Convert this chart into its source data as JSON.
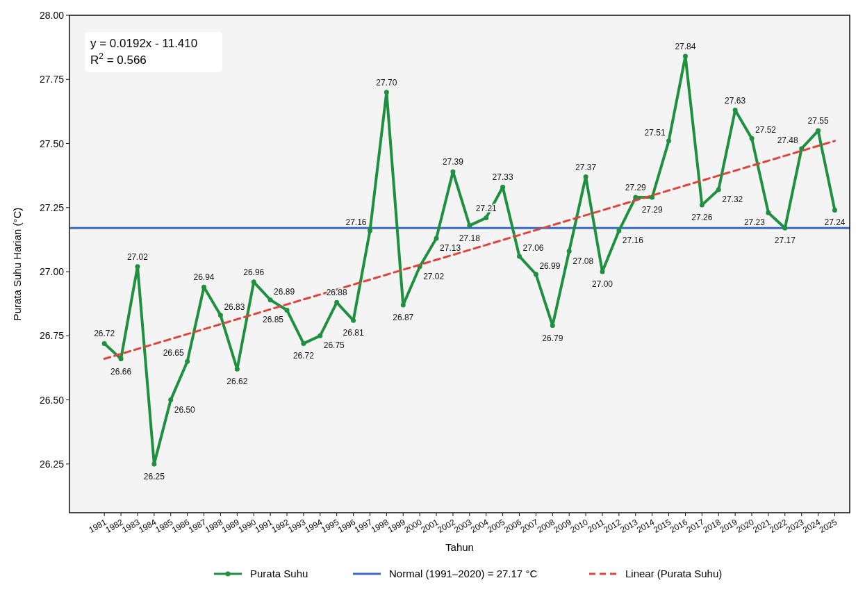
{
  "chart_data": {
    "type": "line",
    "xlabel": "Tahun",
    "ylabel": "Purata Suhu Harian (°C)",
    "x": [
      1981,
      1982,
      1983,
      1984,
      1985,
      1986,
      1987,
      1988,
      1989,
      1990,
      1991,
      1992,
      1993,
      1994,
      1995,
      1996,
      1997,
      1998,
      1999,
      2000,
      2001,
      2002,
      2003,
      2004,
      2005,
      2006,
      2007,
      2008,
      2009,
      2010,
      2011,
      2012,
      2013,
      2014,
      2015,
      2016,
      2017,
      2018,
      2019,
      2020,
      2021,
      2022,
      2023,
      2024,
      2025
    ],
    "xlim": [
      1978.9,
      2025.9
    ],
    "xticks": [
      1981,
      1982,
      1983,
      1984,
      1985,
      1986,
      1987,
      1988,
      1989,
      1990,
      1991,
      1992,
      1993,
      1994,
      1995,
      1996,
      1997,
      1998,
      1999,
      2000,
      2001,
      2002,
      2003,
      2004,
      2005,
      2006,
      2007,
      2008,
      2009,
      2010,
      2011,
      2012,
      2013,
      2014,
      2015,
      2016,
      2017,
      2018,
      2019,
      2020,
      2021,
      2022,
      2023,
      2024,
      2025
    ],
    "series": [
      {
        "name": "Purata Suhu",
        "color": "#1e9040",
        "marker": "circle",
        "line_style": "solid",
        "value_labels": [
          "26.72",
          "26.66",
          "27.02",
          "26.25",
          "26.50",
          "26.65",
          "26.94",
          "26.83",
          "26.62",
          "26.96",
          "26.89",
          "26.85",
          "26.72",
          "26.75",
          "26.88",
          "26.81",
          "27.16",
          "27.70",
          "26.87",
          "27.02",
          "27.13",
          "27.39",
          "27.18",
          "27.21",
          "27.33",
          "27.06",
          "26.99",
          "26.79",
          "27.08",
          "27.37",
          "27.00",
          "27.16",
          "27.29",
          "27.29",
          "27.51",
          "27.84",
          "27.26",
          "27.32",
          "27.63",
          "27.52",
          "27.23",
          "27.17",
          "27.48",
          "27.55",
          "27.24"
        ],
        "values": [
          26.72,
          26.66,
          27.02,
          26.25,
          26.5,
          26.65,
          26.94,
          26.83,
          26.62,
          26.96,
          26.89,
          26.85,
          26.72,
          26.75,
          26.88,
          26.81,
          27.16,
          27.7,
          26.87,
          27.02,
          27.13,
          27.39,
          27.18,
          27.21,
          27.33,
          27.06,
          26.99,
          26.79,
          27.08,
          27.37,
          27.0,
          27.16,
          27.29,
          27.29,
          27.51,
          27.84,
          27.26,
          27.32,
          27.63,
          27.52,
          27.23,
          27.17,
          27.48,
          27.55,
          27.24
        ]
      },
      {
        "name": "Linear (Purata Suhu)",
        "type": "line",
        "color": "#e0443a",
        "line_style": "dashed",
        "marker": "none",
        "x": [
          1981,
          2025
        ],
        "values": [
          26.66,
          27.51
        ]
      }
    ],
    "ref_lines": [
      {
        "axis": "y",
        "value": 27.17,
        "label": "Normal (1991–2020) = 27.17 °C",
        "color": "#3a6cc6",
        "line_style": "solid"
      }
    ],
    "annotations": [
      "y = 0.0192x - 11.410",
      "R$^{2}$ = 0.566"
    ],
    "ylim": [
      26.06,
      28.0
    ],
    "yticks": [
      {
        "value": 26.25,
        "label": "26.25"
      },
      {
        "value": 26.5,
        "label": "26.50"
      },
      {
        "value": 26.75,
        "label": "26.75"
      },
      {
        "value": 27.0,
        "label": "27.00"
      },
      {
        "value": 27.25,
        "label": "27.25"
      },
      {
        "value": 27.5,
        "label": "27.50"
      },
      {
        "value": 27.75,
        "label": "27.75"
      },
      {
        "value": 28.0,
        "label": "28.00"
      }
    ],
    "grid": false,
    "legend": "bottom"
  }
}
